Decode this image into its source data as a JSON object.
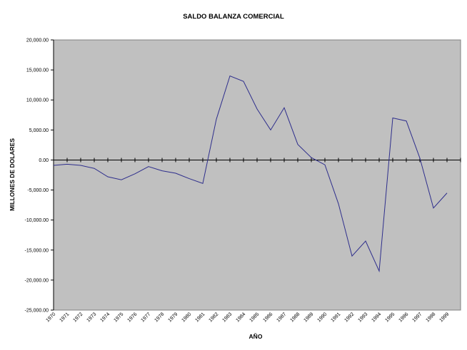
{
  "chart_data": {
    "type": "line",
    "title": "SALDO BALANZA COMERCIAL",
    "xlabel": "AÑO",
    "ylabel": "MILLONES DE DOLARES",
    "ylim": [
      -25000,
      20000
    ],
    "y_ticks": [
      20000,
      15000,
      10000,
      5000,
      0,
      -5000,
      -10000,
      -15000,
      -20000,
      -25000
    ],
    "y_tick_labels": [
      "20,000.00",
      "15,000.00",
      "10,000.00",
      "5,000.00",
      "0.00",
      "-5,000.00",
      "-10,000.00",
      "-15,000.00",
      "-20,000.00",
      "-25,000.00"
    ],
    "categories": [
      "1970",
      "1971",
      "1972",
      "1973",
      "1974",
      "1975",
      "1976",
      "1977",
      "1978",
      "1979",
      "1980",
      "1981",
      "1982",
      "1983",
      "1984",
      "1985",
      "1986",
      "1987",
      "1988",
      "1989",
      "1990",
      "1991",
      "1992",
      "1993",
      "1994",
      "1995",
      "1996",
      "1997",
      "1998",
      "1999"
    ],
    "series": [
      {
        "values": [
          -900,
          -700,
          -900,
          -1400,
          -2800,
          -3300,
          -2300,
          -1100,
          -1800,
          -2200,
          -3100,
          -3900,
          6800,
          14000,
          13100,
          8500,
          5000,
          8700,
          2600,
          400,
          -800,
          -7300,
          -16000,
          -13500,
          -18500,
          7000,
          6500,
          300,
          -8000,
          -5500
        ]
      }
    ],
    "grid": false,
    "legend": "none",
    "colors": {
      "plot_background": "#c0c0c0",
      "line": "#2e2e8c",
      "axis": "#000000"
    }
  }
}
